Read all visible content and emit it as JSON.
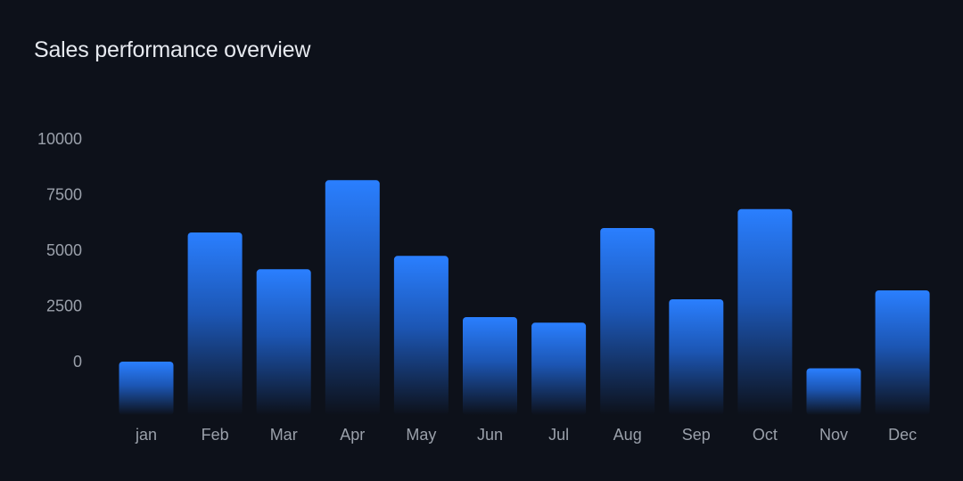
{
  "chart_data": {
    "type": "bar",
    "title": "Sales performance overview",
    "xlabel": "",
    "ylabel": "",
    "categories": [
      "jan",
      "Feb",
      "Mar",
      "Apr",
      "May",
      "Jun",
      "Jul",
      "Aug",
      "Sep",
      "Oct",
      "Nov",
      "Dec"
    ],
    "values": [
      0,
      5800,
      4150,
      8150,
      4750,
      2000,
      1750,
      6000,
      2800,
      6850,
      -300,
      3200
    ],
    "yticks": [
      "10000",
      "7500",
      "5000",
      "2500",
      "0"
    ],
    "ylim": [
      -2400,
      10000
    ],
    "grid": false,
    "colors": {
      "bar_top": "#2a7fff",
      "bar_bottom": "#0d111a",
      "background": "#0d111a",
      "text": "#9aa0aa",
      "title": "#e6e9ef"
    }
  }
}
